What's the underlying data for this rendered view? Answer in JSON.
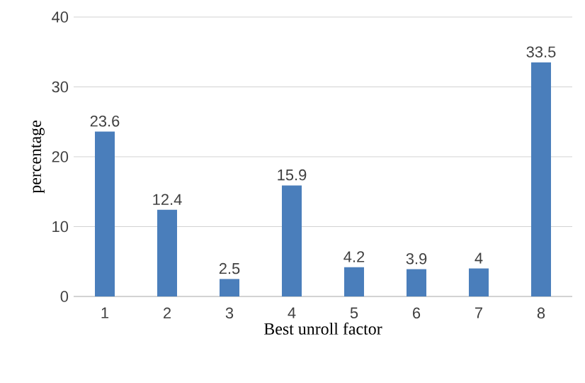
{
  "chart_data": {
    "type": "bar",
    "xlabel": "Best unroll factor",
    "ylabel": "percentage",
    "categories": [
      "1",
      "2",
      "3",
      "4",
      "5",
      "6",
      "7",
      "8"
    ],
    "values": [
      23.6,
      12.4,
      2.5,
      15.9,
      4.2,
      3.9,
      4,
      33.5
    ],
    "color": "#4a7ebb",
    "ylim": [
      0,
      40
    ],
    "yticks": [
      0,
      10,
      20,
      30,
      40
    ],
    "grid": "y",
    "data_labels": true
  }
}
